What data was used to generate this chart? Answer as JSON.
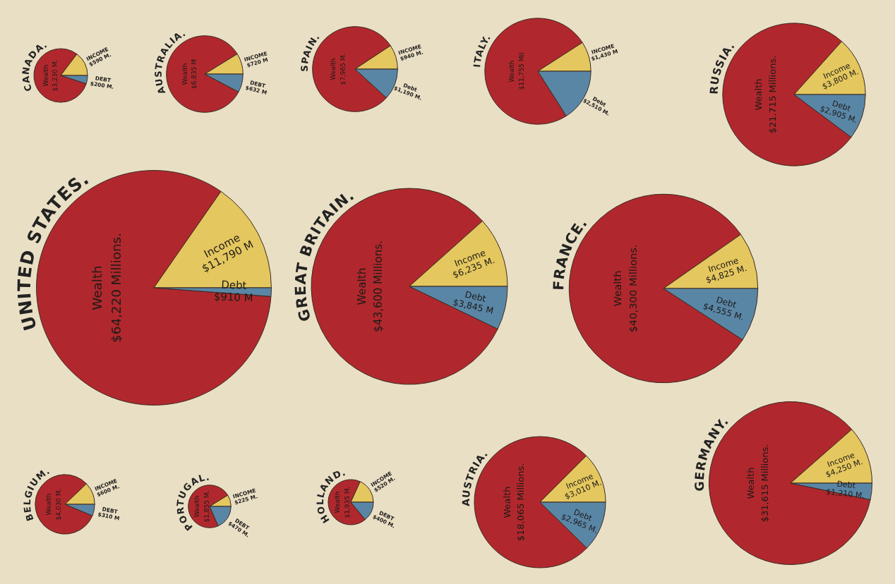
{
  "chart_data": [
    {
      "type": "pie",
      "title": "CANADA.",
      "categories": [
        "Wealth",
        "INCOME",
        "DEBT"
      ],
      "values": [
        3230,
        590,
        200
      ],
      "value_labels": [
        "$3,230 M.",
        "$590 M.",
        "$200 M."
      ],
      "colors": [
        "#b0282d",
        "#e4c75e",
        "#5a86a6"
      ]
    },
    {
      "type": "pie",
      "title": "AUSTRALIA.",
      "categories": [
        "Wealth",
        "INCOME",
        "DEBT"
      ],
      "values": [
        6835,
        720,
        632
      ],
      "value_labels": [
        "$6,835 M",
        "$720 M",
        "$632 M"
      ],
      "colors": [
        "#b0282d",
        "#e4c75e",
        "#5a86a6"
      ]
    },
    {
      "type": "pie",
      "title": "SPAIN.",
      "categories": [
        "Wealth",
        "INCOME",
        "Debt"
      ],
      "values": [
        7965,
        940,
        1190
      ],
      "value_labels": [
        "$7,965 M.",
        "$940 M.",
        "$1,190 M."
      ],
      "colors": [
        "#b0282d",
        "#e4c75e",
        "#5a86a6"
      ]
    },
    {
      "type": "pie",
      "title": "ITALY.",
      "categories": [
        "Wealth",
        "INCOME",
        "Debt"
      ],
      "values": [
        11755,
        1430,
        2510
      ],
      "value_labels": [
        "$11,755 Mil",
        "$1,430 M",
        "$2,510 M."
      ],
      "colors": [
        "#b0282d",
        "#e4c75e",
        "#5a86a6"
      ]
    },
    {
      "type": "pie",
      "title": "RUSSIA.",
      "categories": [
        "Wealth",
        "Income",
        "Debt"
      ],
      "values": [
        21715,
        3800,
        2905
      ],
      "value_labels": [
        "$21,715 Millions.",
        "$3,800 M.",
        "$2,905 M."
      ],
      "colors": [
        "#b0282d",
        "#e4c75e",
        "#5a86a6"
      ]
    },
    {
      "type": "pie",
      "title": "UNITED STATES.",
      "categories": [
        "Wealth",
        "Income",
        "Debt"
      ],
      "values": [
        64220,
        11790,
        910
      ],
      "value_labels": [
        "$64,220 Millions.",
        "$11,790 M",
        "$910 M"
      ],
      "colors": [
        "#b0282d",
        "#e4c75e",
        "#5a86a6"
      ]
    },
    {
      "type": "pie",
      "title": "GREAT BRITAIN.",
      "categories": [
        "Wealth",
        "Income",
        "Debt"
      ],
      "values": [
        43600,
        6235,
        3845
      ],
      "value_labels": [
        "$43,600 Millions.",
        "$6,235 M.",
        "$3,845 M"
      ],
      "colors": [
        "#b0282d",
        "#e4c75e",
        "#5a86a6"
      ]
    },
    {
      "type": "pie",
      "title": "FRANCE.",
      "categories": [
        "Wealth",
        "Income",
        "Debt"
      ],
      "values": [
        40300,
        4825,
        4555
      ],
      "value_labels": [
        "$40,300 Millions.",
        "$4,825 M.",
        "$4,555 M."
      ],
      "colors": [
        "#b0282d",
        "#e4c75e",
        "#5a86a6"
      ]
    },
    {
      "type": "pie",
      "title": "BELGIUM.",
      "categories": [
        "Wealth",
        "INCOME",
        "DEBT"
      ],
      "values": [
        4030,
        600,
        310
      ],
      "value_labels": [
        "$4,030 M.",
        "$600 M.",
        "$310 M"
      ],
      "colors": [
        "#b0282d",
        "#e4c75e",
        "#5a86a6"
      ]
    },
    {
      "type": "pie",
      "title": "PORTUGAL.",
      "categories": [
        "Wealth",
        "INCOME",
        "DEBT"
      ],
      "values": [
        1855,
        225,
        470
      ],
      "value_labels": [
        "$1,855 M.",
        "$225 M.",
        "$470 M."
      ],
      "colors": [
        "#b0282d",
        "#e4c75e",
        "#5a86a6"
      ]
    },
    {
      "type": "pie",
      "title": "HOLLAND.",
      "categories": [
        "Wealth",
        "INCOME",
        "DEBT"
      ],
      "values": [
        1935,
        520,
        400
      ],
      "value_labels": [
        "$1,935 M.",
        "$520 M.",
        "$400 M."
      ],
      "colors": [
        "#b0282d",
        "#e4c75e",
        "#5a86a6"
      ]
    },
    {
      "type": "pie",
      "title": "AUSTRIA.",
      "categories": [
        "Wealth",
        "Income",
        "Debt"
      ],
      "values": [
        18065,
        3010,
        2965
      ],
      "value_labels": [
        "$18,065 Millions.",
        "$3,010 M.",
        "$2,965 M."
      ],
      "colors": [
        "#b0282d",
        "#e4c75e",
        "#5a86a6"
      ]
    },
    {
      "type": "pie",
      "title": "GERMANY.",
      "categories": [
        "Wealth",
        "Income",
        "Debt"
      ],
      "values": [
        31615,
        4250,
        1210
      ],
      "value_labels": [
        "$31,615 Millions.",
        "$4,250 M.",
        "$1,210 M."
      ],
      "colors": [
        "#b0282d",
        "#e4c75e",
        "#5a86a6"
      ]
    }
  ]
}
